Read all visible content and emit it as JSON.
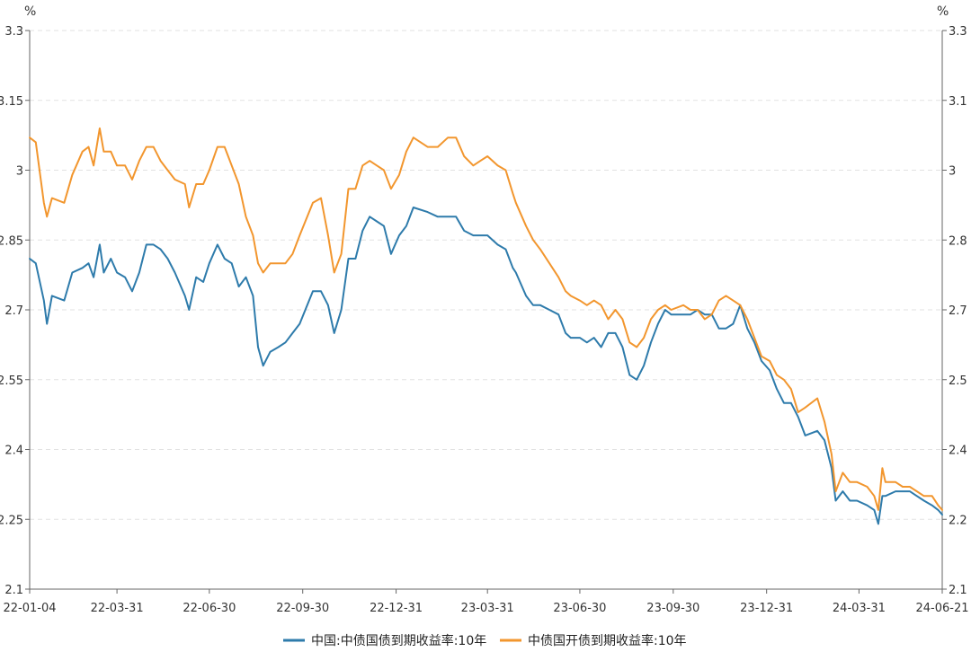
{
  "chart_data": {
    "type": "line",
    "title": "",
    "left_axis": {
      "unit": "%",
      "ticks": [
        "3.3",
        "3.15",
        "3",
        "2.85",
        "2.7",
        "2.55",
        "2.4",
        "2.25",
        "2.1"
      ],
      "range": [
        2.1,
        3.3
      ]
    },
    "right_axis": {
      "unit": "%",
      "ticks": [
        "3.3",
        "3.1",
        "3",
        "2.8",
        "2.7",
        "2.5",
        "2.4",
        "2.2",
        "2.1"
      ],
      "range": [
        2.1,
        3.3
      ]
    },
    "x_ticks": [
      "22-01-04",
      "22-03-31",
      "22-06-30",
      "22-09-30",
      "22-12-31",
      "23-03-31",
      "23-06-30",
      "23-09-30",
      "23-12-31",
      "24-03-31",
      "24-06-21"
    ],
    "x_tick_dates": [
      "2022-01-04",
      "2022-03-31",
      "2022-06-30",
      "2022-09-30",
      "2022-12-31",
      "2023-03-31",
      "2023-06-30",
      "2023-09-30",
      "2023-12-31",
      "2024-03-31",
      "2024-06-21"
    ],
    "grid": true,
    "legend_position": "bottom-center",
    "series": [
      {
        "name": "中国:中债国债到期收益率:10年",
        "color": "#2e7bab",
        "axis": "left",
        "points": [
          [
            "2022-01-04",
            2.81
          ],
          [
            "2022-01-10",
            2.8
          ],
          [
            "2022-01-18",
            2.72
          ],
          [
            "2022-01-21",
            2.67
          ],
          [
            "2022-01-26",
            2.73
          ],
          [
            "2022-02-07",
            2.72
          ],
          [
            "2022-02-15",
            2.78
          ],
          [
            "2022-02-25",
            2.79
          ],
          [
            "2022-03-03",
            2.8
          ],
          [
            "2022-03-08",
            2.77
          ],
          [
            "2022-03-14",
            2.84
          ],
          [
            "2022-03-18",
            2.78
          ],
          [
            "2022-03-25",
            2.81
          ],
          [
            "2022-03-31",
            2.78
          ],
          [
            "2022-04-08",
            2.77
          ],
          [
            "2022-04-15",
            2.74
          ],
          [
            "2022-04-22",
            2.78
          ],
          [
            "2022-04-29",
            2.84
          ],
          [
            "2022-05-06",
            2.84
          ],
          [
            "2022-05-13",
            2.83
          ],
          [
            "2022-05-20",
            2.81
          ],
          [
            "2022-05-27",
            2.78
          ],
          [
            "2022-06-06",
            2.73
          ],
          [
            "2022-06-10",
            2.7
          ],
          [
            "2022-06-17",
            2.77
          ],
          [
            "2022-06-24",
            2.76
          ],
          [
            "2022-06-30",
            2.8
          ],
          [
            "2022-07-08",
            2.84
          ],
          [
            "2022-07-15",
            2.81
          ],
          [
            "2022-07-22",
            2.8
          ],
          [
            "2022-07-29",
            2.75
          ],
          [
            "2022-08-05",
            2.77
          ],
          [
            "2022-08-12",
            2.73
          ],
          [
            "2022-08-17",
            2.62
          ],
          [
            "2022-08-22",
            2.58
          ],
          [
            "2022-08-29",
            2.61
          ],
          [
            "2022-09-06",
            2.62
          ],
          [
            "2022-09-13",
            2.63
          ],
          [
            "2022-09-20",
            2.65
          ],
          [
            "2022-09-27",
            2.67
          ],
          [
            "2022-10-10",
            2.74
          ],
          [
            "2022-10-18",
            2.74
          ],
          [
            "2022-10-25",
            2.71
          ],
          [
            "2022-10-31",
            2.65
          ],
          [
            "2022-11-07",
            2.7
          ],
          [
            "2022-11-14",
            2.81
          ],
          [
            "2022-11-21",
            2.81
          ],
          [
            "2022-11-28",
            2.87
          ],
          [
            "2022-12-05",
            2.9
          ],
          [
            "2022-12-12",
            2.89
          ],
          [
            "2022-12-19",
            2.88
          ],
          [
            "2022-12-26",
            2.82
          ],
          [
            "2023-01-03",
            2.86
          ],
          [
            "2023-01-10",
            2.88
          ],
          [
            "2023-01-17",
            2.92
          ],
          [
            "2023-01-31",
            2.91
          ],
          [
            "2023-02-10",
            2.9
          ],
          [
            "2023-02-20",
            2.9
          ],
          [
            "2023-02-28",
            2.9
          ],
          [
            "2023-03-08",
            2.87
          ],
          [
            "2023-03-17",
            2.86
          ],
          [
            "2023-03-24",
            2.86
          ],
          [
            "2023-03-31",
            2.86
          ],
          [
            "2023-04-10",
            2.84
          ],
          [
            "2023-04-18",
            2.83
          ],
          [
            "2023-04-25",
            2.79
          ],
          [
            "2023-04-28",
            2.78
          ],
          [
            "2023-05-08",
            2.73
          ],
          [
            "2023-05-15",
            2.71
          ],
          [
            "2023-05-22",
            2.71
          ],
          [
            "2023-05-31",
            2.7
          ],
          [
            "2023-06-09",
            2.69
          ],
          [
            "2023-06-16",
            2.65
          ],
          [
            "2023-06-21",
            2.64
          ],
          [
            "2023-06-30",
            2.64
          ],
          [
            "2023-07-07",
            2.63
          ],
          [
            "2023-07-14",
            2.64
          ],
          [
            "2023-07-21",
            2.62
          ],
          [
            "2023-07-28",
            2.65
          ],
          [
            "2023-08-04",
            2.65
          ],
          [
            "2023-08-11",
            2.62
          ],
          [
            "2023-08-18",
            2.56
          ],
          [
            "2023-08-25",
            2.55
          ],
          [
            "2023-09-01",
            2.58
          ],
          [
            "2023-09-08",
            2.63
          ],
          [
            "2023-09-15",
            2.67
          ],
          [
            "2023-09-22",
            2.7
          ],
          [
            "2023-09-28",
            2.69
          ],
          [
            "2023-10-10",
            2.69
          ],
          [
            "2023-10-17",
            2.69
          ],
          [
            "2023-10-24",
            2.7
          ],
          [
            "2023-10-31",
            2.69
          ],
          [
            "2023-11-07",
            2.69
          ],
          [
            "2023-11-14",
            2.66
          ],
          [
            "2023-11-21",
            2.66
          ],
          [
            "2023-11-28",
            2.67
          ],
          [
            "2023-12-05",
            2.71
          ],
          [
            "2023-12-12",
            2.66
          ],
          [
            "2023-12-19",
            2.63
          ],
          [
            "2023-12-26",
            2.59
          ],
          [
            "2024-01-03",
            2.57
          ],
          [
            "2024-01-10",
            2.53
          ],
          [
            "2024-01-17",
            2.5
          ],
          [
            "2024-01-24",
            2.5
          ],
          [
            "2024-01-31",
            2.47
          ],
          [
            "2024-02-07",
            2.43
          ],
          [
            "2024-02-19",
            2.44
          ],
          [
            "2024-02-26",
            2.42
          ],
          [
            "2024-03-04",
            2.36
          ],
          [
            "2024-03-08",
            2.29
          ],
          [
            "2024-03-15",
            2.31
          ],
          [
            "2024-03-22",
            2.29
          ],
          [
            "2024-03-29",
            2.29
          ],
          [
            "2024-04-08",
            2.28
          ],
          [
            "2024-04-15",
            2.27
          ],
          [
            "2024-04-19",
            2.24
          ],
          [
            "2024-04-23",
            2.3
          ],
          [
            "2024-04-26",
            2.3
          ],
          [
            "2024-05-06",
            2.31
          ],
          [
            "2024-05-13",
            2.31
          ],
          [
            "2024-05-20",
            2.31
          ],
          [
            "2024-05-27",
            2.3
          ],
          [
            "2024-06-03",
            2.29
          ],
          [
            "2024-06-11",
            2.28
          ],
          [
            "2024-06-17",
            2.27
          ],
          [
            "2024-06-21",
            2.26
          ]
        ]
      },
      {
        "name": "中债国开债到期收益率:10年",
        "color": "#f2962e",
        "axis": "right",
        "points": [
          [
            "2022-01-04",
            3.07
          ],
          [
            "2022-01-10",
            3.06
          ],
          [
            "2022-01-18",
            2.93
          ],
          [
            "2022-01-21",
            2.9
          ],
          [
            "2022-01-26",
            2.94
          ],
          [
            "2022-02-07",
            2.93
          ],
          [
            "2022-02-15",
            2.99
          ],
          [
            "2022-02-25",
            3.04
          ],
          [
            "2022-03-03",
            3.05
          ],
          [
            "2022-03-08",
            3.01
          ],
          [
            "2022-03-14",
            3.09
          ],
          [
            "2022-03-18",
            3.04
          ],
          [
            "2022-03-25",
            3.04
          ],
          [
            "2022-03-31",
            3.01
          ],
          [
            "2022-04-08",
            3.01
          ],
          [
            "2022-04-15",
            2.98
          ],
          [
            "2022-04-22",
            3.02
          ],
          [
            "2022-04-29",
            3.05
          ],
          [
            "2022-05-06",
            3.05
          ],
          [
            "2022-05-13",
            3.02
          ],
          [
            "2022-05-20",
            3.0
          ],
          [
            "2022-05-27",
            2.98
          ],
          [
            "2022-06-06",
            2.97
          ],
          [
            "2022-06-10",
            2.92
          ],
          [
            "2022-06-17",
            2.97
          ],
          [
            "2022-06-24",
            2.97
          ],
          [
            "2022-06-30",
            3.0
          ],
          [
            "2022-07-08",
            3.05
          ],
          [
            "2022-07-15",
            3.05
          ],
          [
            "2022-07-22",
            3.01
          ],
          [
            "2022-07-29",
            2.97
          ],
          [
            "2022-08-05",
            2.9
          ],
          [
            "2022-08-12",
            2.86
          ],
          [
            "2022-08-17",
            2.8
          ],
          [
            "2022-08-22",
            2.78
          ],
          [
            "2022-08-29",
            2.8
          ],
          [
            "2022-09-06",
            2.8
          ],
          [
            "2022-09-13",
            2.8
          ],
          [
            "2022-09-20",
            2.82
          ],
          [
            "2022-09-27",
            2.86
          ],
          [
            "2022-10-10",
            2.93
          ],
          [
            "2022-10-18",
            2.94
          ],
          [
            "2022-10-25",
            2.86
          ],
          [
            "2022-10-31",
            2.78
          ],
          [
            "2022-11-07",
            2.82
          ],
          [
            "2022-11-14",
            2.96
          ],
          [
            "2022-11-21",
            2.96
          ],
          [
            "2022-11-28",
            3.01
          ],
          [
            "2022-12-05",
            3.02
          ],
          [
            "2022-12-12",
            3.01
          ],
          [
            "2022-12-19",
            3.0
          ],
          [
            "2022-12-26",
            2.96
          ],
          [
            "2023-01-03",
            2.99
          ],
          [
            "2023-01-10",
            3.04
          ],
          [
            "2023-01-17",
            3.07
          ],
          [
            "2023-01-31",
            3.05
          ],
          [
            "2023-02-10",
            3.05
          ],
          [
            "2023-02-20",
            3.07
          ],
          [
            "2023-02-28",
            3.07
          ],
          [
            "2023-03-08",
            3.03
          ],
          [
            "2023-03-17",
            3.01
          ],
          [
            "2023-03-24",
            3.02
          ],
          [
            "2023-03-31",
            3.03
          ],
          [
            "2023-04-10",
            3.01
          ],
          [
            "2023-04-18",
            3.0
          ],
          [
            "2023-04-25",
            2.95
          ],
          [
            "2023-04-28",
            2.93
          ],
          [
            "2023-05-08",
            2.88
          ],
          [
            "2023-05-15",
            2.85
          ],
          [
            "2023-05-22",
            2.83
          ],
          [
            "2023-05-31",
            2.8
          ],
          [
            "2023-06-09",
            2.77
          ],
          [
            "2023-06-16",
            2.74
          ],
          [
            "2023-06-21",
            2.73
          ],
          [
            "2023-06-30",
            2.72
          ],
          [
            "2023-07-07",
            2.71
          ],
          [
            "2023-07-14",
            2.72
          ],
          [
            "2023-07-21",
            2.71
          ],
          [
            "2023-07-28",
            2.68
          ],
          [
            "2023-08-04",
            2.7
          ],
          [
            "2023-08-11",
            2.68
          ],
          [
            "2023-08-18",
            2.63
          ],
          [
            "2023-08-25",
            2.62
          ],
          [
            "2023-09-01",
            2.64
          ],
          [
            "2023-09-08",
            2.68
          ],
          [
            "2023-09-15",
            2.7
          ],
          [
            "2023-09-22",
            2.71
          ],
          [
            "2023-09-28",
            2.7
          ],
          [
            "2023-10-10",
            2.71
          ],
          [
            "2023-10-17",
            2.7
          ],
          [
            "2023-10-24",
            2.7
          ],
          [
            "2023-10-31",
            2.68
          ],
          [
            "2023-11-07",
            2.69
          ],
          [
            "2023-11-14",
            2.72
          ],
          [
            "2023-11-21",
            2.73
          ],
          [
            "2023-11-28",
            2.72
          ],
          [
            "2023-12-05",
            2.71
          ],
          [
            "2023-12-12",
            2.68
          ],
          [
            "2023-12-19",
            2.64
          ],
          [
            "2023-12-26",
            2.6
          ],
          [
            "2024-01-03",
            2.59
          ],
          [
            "2024-01-10",
            2.56
          ],
          [
            "2024-01-17",
            2.55
          ],
          [
            "2024-01-24",
            2.53
          ],
          [
            "2024-01-31",
            2.48
          ],
          [
            "2024-02-07",
            2.49
          ],
          [
            "2024-02-19",
            2.51
          ],
          [
            "2024-02-26",
            2.46
          ],
          [
            "2024-03-04",
            2.39
          ],
          [
            "2024-03-08",
            2.31
          ],
          [
            "2024-03-15",
            2.35
          ],
          [
            "2024-03-22",
            2.33
          ],
          [
            "2024-03-29",
            2.33
          ],
          [
            "2024-04-08",
            2.32
          ],
          [
            "2024-04-15",
            2.3
          ],
          [
            "2024-04-19",
            2.27
          ],
          [
            "2024-04-23",
            2.36
          ],
          [
            "2024-04-26",
            2.33
          ],
          [
            "2024-05-06",
            2.33
          ],
          [
            "2024-05-13",
            2.32
          ],
          [
            "2024-05-20",
            2.32
          ],
          [
            "2024-05-27",
            2.31
          ],
          [
            "2024-06-03",
            2.3
          ],
          [
            "2024-06-11",
            2.3
          ],
          [
            "2024-06-17",
            2.28
          ],
          [
            "2024-06-21",
            2.27
          ]
        ]
      }
    ]
  }
}
